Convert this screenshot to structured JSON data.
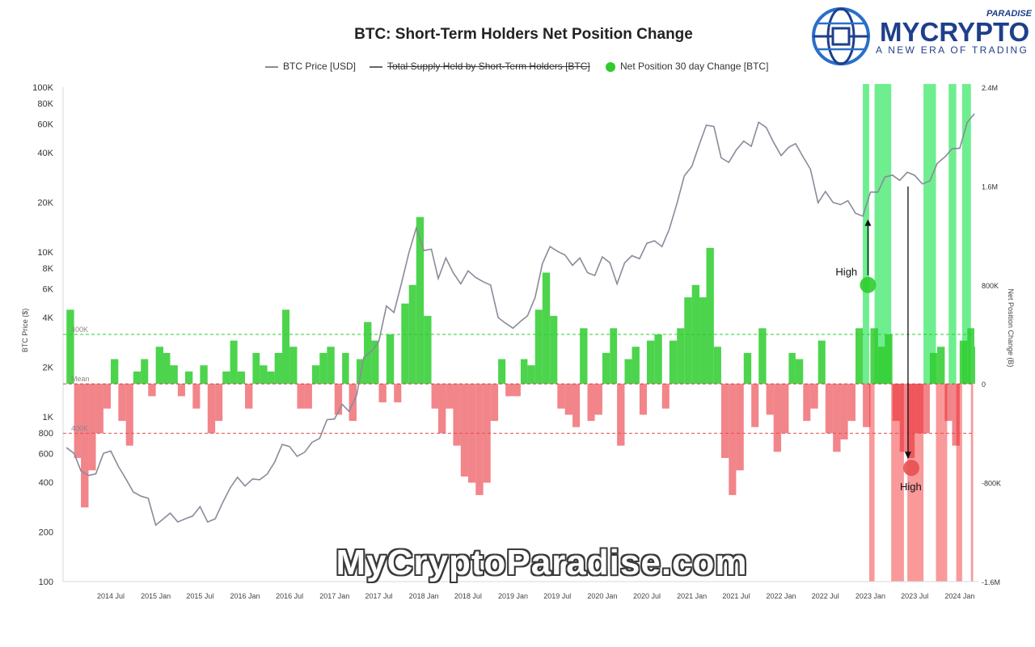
{
  "chart_data": {
    "type": "line",
    "title": "BTC: Short-Term Holders Net Position Change",
    "legend": [
      {
        "label": "BTC Price [USD]",
        "color": "#8a8a9a",
        "shape": "line",
        "struck": false
      },
      {
        "label": "Total Supply Held by Short-Term Holders [BTC]",
        "color": "#666666",
        "shape": "line",
        "struck": true
      },
      {
        "label": "Net Position 30 day Change [BTC]",
        "color": "#2ecc2e",
        "shape": "dot",
        "struck": false
      }
    ],
    "legend_position": "top-center",
    "ylabel_left": "BTC Price ($)",
    "ylabel_right": "Net Position Change (B)",
    "left_scale": "log",
    "left_ylim": [
      100,
      100000
    ],
    "left_ticks": [
      "100K",
      "80K",
      "60K",
      "40K",
      "20K",
      "10K",
      "8K",
      "6K",
      "4K",
      "2K",
      "1K",
      "800",
      "600",
      "400",
      "200",
      "100"
    ],
    "left_tick_values": [
      100000,
      80000,
      60000,
      40000,
      20000,
      10000,
      8000,
      6000,
      4000,
      2000,
      1000,
      800,
      600,
      400,
      200,
      100
    ],
    "right_ylim": [
      -1600000,
      2400000
    ],
    "right_ticks": [
      "2.4M",
      "1.6M",
      "800K",
      "0",
      "-800K",
      "-1.6M"
    ],
    "right_tick_values": [
      2400000,
      1600000,
      800000,
      0,
      -800000,
      -1600000
    ],
    "x_start": "2014-01",
    "x_end": "2024-03",
    "x_ticks": [
      {
        "label": "2014 Jul",
        "date": "2014-07"
      },
      {
        "label": "2015 Jan",
        "date": "2015-01"
      },
      {
        "label": "2015 Jul",
        "date": "2015-07"
      },
      {
        "label": "2016 Jan",
        "date": "2016-01"
      },
      {
        "label": "2016 Jul",
        "date": "2016-07"
      },
      {
        "label": "2017 Jan",
        "date": "2017-01"
      },
      {
        "label": "2017 Jul",
        "date": "2017-07"
      },
      {
        "label": "2018 Jan",
        "date": "2018-01"
      },
      {
        "label": "2018 Jul",
        "date": "2018-07"
      },
      {
        "label": "2019 Jan",
        "date": "2019-01"
      },
      {
        "label": "2019 Jul",
        "date": "2019-07"
      },
      {
        "label": "2020 Jan",
        "date": "2020-01"
      },
      {
        "label": "2020 Jul",
        "date": "2020-07"
      },
      {
        "label": "2021 Jan",
        "date": "2021-01"
      },
      {
        "label": "2021 Jul",
        "date": "2021-07"
      },
      {
        "label": "2022 Jan",
        "date": "2022-01"
      },
      {
        "label": "2022 Jul",
        "date": "2022-07"
      },
      {
        "label": "2023 Jan",
        "date": "2023-01"
      },
      {
        "label": "2023 Jul",
        "date": "2023-07"
      },
      {
        "label": "2024 Jan",
        "date": "2024-01"
      }
    ],
    "reference_lines": [
      {
        "label": "400K",
        "value": 400000,
        "color": "#2ecc2e"
      },
      {
        "label": "Mean",
        "value": 0,
        "color": "#d04040"
      },
      {
        "label": "400K",
        "value": -400000,
        "color": "#e05050"
      }
    ],
    "btc_price": {
      "name": "BTC Price [USD]",
      "color": "#8a8a9a",
      "points": [
        [
          "2014-01",
          650
        ],
        [
          "2014-02",
          600
        ],
        [
          "2014-03",
          470
        ],
        [
          "2014-04",
          440
        ],
        [
          "2014-05",
          450
        ],
        [
          "2014-06",
          600
        ],
        [
          "2014-07",
          620
        ],
        [
          "2014-08",
          500
        ],
        [
          "2014-09",
          420
        ],
        [
          "2014-10",
          350
        ],
        [
          "2014-11",
          330
        ],
        [
          "2014-12",
          320
        ],
        [
          "2015-01",
          220
        ],
        [
          "2015-02",
          240
        ],
        [
          "2015-03",
          260
        ],
        [
          "2015-04",
          230
        ],
        [
          "2015-05",
          240
        ],
        [
          "2015-06",
          250
        ],
        [
          "2015-07",
          285
        ],
        [
          "2015-08",
          230
        ],
        [
          "2015-09",
          240
        ],
        [
          "2015-10",
          300
        ],
        [
          "2015-11",
          370
        ],
        [
          "2015-12",
          430
        ],
        [
          "2016-01",
          380
        ],
        [
          "2016-02",
          420
        ],
        [
          "2016-03",
          415
        ],
        [
          "2016-04",
          450
        ],
        [
          "2016-05",
          530
        ],
        [
          "2016-06",
          680
        ],
        [
          "2016-07",
          660
        ],
        [
          "2016-08",
          575
        ],
        [
          "2016-09",
          610
        ],
        [
          "2016-10",
          700
        ],
        [
          "2016-11",
          740
        ],
        [
          "2016-12",
          960
        ],
        [
          "2017-01",
          970
        ],
        [
          "2017-02",
          1190
        ],
        [
          "2017-03",
          1080
        ],
        [
          "2017-04",
          1350
        ],
        [
          "2017-05",
          2300
        ],
        [
          "2017-06",
          2500
        ],
        [
          "2017-07",
          2870
        ],
        [
          "2017-08",
          4700
        ],
        [
          "2017-09",
          4300
        ],
        [
          "2017-10",
          6400
        ],
        [
          "2017-11",
          9900
        ],
        [
          "2017-12",
          14000
        ],
        [
          "2018-01",
          10200
        ],
        [
          "2018-02",
          10400
        ],
        [
          "2018-03",
          6900
        ],
        [
          "2018-04",
          9200
        ],
        [
          "2018-05",
          7500
        ],
        [
          "2018-06",
          6400
        ],
        [
          "2018-07",
          7700
        ],
        [
          "2018-08",
          7000
        ],
        [
          "2018-09",
          6600
        ],
        [
          "2018-10",
          6300
        ],
        [
          "2018-11",
          4000
        ],
        [
          "2018-12",
          3700
        ],
        [
          "2019-01",
          3450
        ],
        [
          "2019-02",
          3800
        ],
        [
          "2019-03",
          4100
        ],
        [
          "2019-04",
          5300
        ],
        [
          "2019-05",
          8500
        ],
        [
          "2019-06",
          10800
        ],
        [
          "2019-07",
          10100
        ],
        [
          "2019-08",
          9600
        ],
        [
          "2019-09",
          8300
        ],
        [
          "2019-10",
          9200
        ],
        [
          "2019-11",
          7500
        ],
        [
          "2019-12",
          7200
        ],
        [
          "2020-01",
          9350
        ],
        [
          "2020-02",
          8600
        ],
        [
          "2020-03",
          6400
        ],
        [
          "2020-04",
          8600
        ],
        [
          "2020-05",
          9500
        ],
        [
          "2020-06",
          9100
        ],
        [
          "2020-07",
          11300
        ],
        [
          "2020-08",
          11700
        ],
        [
          "2020-09",
          10800
        ],
        [
          "2020-10",
          13800
        ],
        [
          "2020-11",
          19700
        ],
        [
          "2020-12",
          29000
        ],
        [
          "2021-01",
          33100
        ],
        [
          "2021-02",
          45200
        ],
        [
          "2021-03",
          58800
        ],
        [
          "2021-04",
          57800
        ],
        [
          "2021-05",
          37300
        ],
        [
          "2021-06",
          35000
        ],
        [
          "2021-07",
          41500
        ],
        [
          "2021-08",
          47100
        ],
        [
          "2021-09",
          43800
        ],
        [
          "2021-10",
          61300
        ],
        [
          "2021-11",
          57000
        ],
        [
          "2021-12",
          46300
        ],
        [
          "2022-01",
          38500
        ],
        [
          "2022-02",
          43200
        ],
        [
          "2022-03",
          45500
        ],
        [
          "2022-04",
          37700
        ],
        [
          "2022-05",
          31800
        ],
        [
          "2022-06",
          19900
        ],
        [
          "2022-07",
          23300
        ],
        [
          "2022-08",
          20000
        ],
        [
          "2022-09",
          19400
        ],
        [
          "2022-10",
          20500
        ],
        [
          "2022-11",
          17200
        ],
        [
          "2022-12",
          16500
        ],
        [
          "2023-01",
          23100
        ],
        [
          "2023-02",
          23100
        ],
        [
          "2023-03",
          28500
        ],
        [
          "2023-04",
          29300
        ],
        [
          "2023-05",
          27200
        ],
        [
          "2023-06",
          30500
        ],
        [
          "2023-07",
          29200
        ],
        [
          "2023-08",
          25900
        ],
        [
          "2023-09",
          27000
        ],
        [
          "2023-10",
          34500
        ],
        [
          "2023-11",
          37700
        ],
        [
          "2023-12",
          42300
        ],
        [
          "2024-01",
          42600
        ],
        [
          "2024-02",
          61200
        ],
        [
          "2024-03",
          69000
        ]
      ]
    },
    "net_position_change": {
      "name": "Net Position 30 day Change [BTC]",
      "positive_color": "#2ecc2e",
      "negative_color": "#e8202a",
      "points": [
        [
          "2014-01",
          600000
        ],
        [
          "2014-02",
          -600000
        ],
        [
          "2014-03",
          -1000000
        ],
        [
          "2014-04",
          -700000
        ],
        [
          "2014-05",
          -400000
        ],
        [
          "2014-06",
          -200000
        ],
        [
          "2014-07",
          200000
        ],
        [
          "2014-08",
          -300000
        ],
        [
          "2014-09",
          -500000
        ],
        [
          "2014-10",
          100000
        ],
        [
          "2014-11",
          200000
        ],
        [
          "2014-12",
          -100000
        ],
        [
          "2015-01",
          300000
        ],
        [
          "2015-02",
          250000
        ],
        [
          "2015-03",
          150000
        ],
        [
          "2015-04",
          -100000
        ],
        [
          "2015-05",
          100000
        ],
        [
          "2015-06",
          -200000
        ],
        [
          "2015-07",
          150000
        ],
        [
          "2015-08",
          -400000
        ],
        [
          "2015-09",
          -300000
        ],
        [
          "2015-10",
          100000
        ],
        [
          "2015-11",
          350000
        ],
        [
          "2015-12",
          100000
        ],
        [
          "2016-01",
          -200000
        ],
        [
          "2016-02",
          250000
        ],
        [
          "2016-03",
          150000
        ],
        [
          "2016-04",
          100000
        ],
        [
          "2016-05",
          250000
        ],
        [
          "2016-06",
          600000
        ],
        [
          "2016-07",
          300000
        ],
        [
          "2016-08",
          -200000
        ],
        [
          "2016-09",
          -200000
        ],
        [
          "2016-10",
          150000
        ],
        [
          "2016-11",
          250000
        ],
        [
          "2016-12",
          300000
        ],
        [
          "2017-01",
          -250000
        ],
        [
          "2017-02",
          250000
        ],
        [
          "2017-03",
          -300000
        ],
        [
          "2017-04",
          200000
        ],
        [
          "2017-05",
          500000
        ],
        [
          "2017-06",
          350000
        ],
        [
          "2017-07",
          -150000
        ],
        [
          "2017-08",
          400000
        ],
        [
          "2017-09",
          -150000
        ],
        [
          "2017-10",
          650000
        ],
        [
          "2017-11",
          800000
        ],
        [
          "2017-12",
          1350000
        ],
        [
          "2018-01",
          550000
        ],
        [
          "2018-02",
          -200000
        ],
        [
          "2018-03",
          -400000
        ],
        [
          "2018-04",
          -200000
        ],
        [
          "2018-05",
          -500000
        ],
        [
          "2018-06",
          -750000
        ],
        [
          "2018-07",
          -800000
        ],
        [
          "2018-08",
          -900000
        ],
        [
          "2018-09",
          -800000
        ],
        [
          "2018-10",
          -300000
        ],
        [
          "2018-11",
          200000
        ],
        [
          "2018-12",
          -100000
        ],
        [
          "2019-01",
          -100000
        ],
        [
          "2019-02",
          200000
        ],
        [
          "2019-03",
          150000
        ],
        [
          "2019-04",
          600000
        ],
        [
          "2019-05",
          900000
        ],
        [
          "2019-06",
          550000
        ],
        [
          "2019-07",
          -200000
        ],
        [
          "2019-08",
          -250000
        ],
        [
          "2019-09",
          -350000
        ],
        [
          "2019-10",
          450000
        ],
        [
          "2019-11",
          -300000
        ],
        [
          "2019-12",
          -250000
        ],
        [
          "2020-01",
          250000
        ],
        [
          "2020-02",
          450000
        ],
        [
          "2020-03",
          -500000
        ],
        [
          "2020-04",
          200000
        ],
        [
          "2020-05",
          300000
        ],
        [
          "2020-06",
          -250000
        ],
        [
          "2020-07",
          350000
        ],
        [
          "2020-08",
          400000
        ],
        [
          "2020-09",
          -200000
        ],
        [
          "2020-10",
          350000
        ],
        [
          "2020-11",
          450000
        ],
        [
          "2020-12",
          700000
        ],
        [
          "2021-01",
          800000
        ],
        [
          "2021-02",
          700000
        ],
        [
          "2021-03",
          1100000
        ],
        [
          "2021-04",
          300000
        ],
        [
          "2021-05",
          -600000
        ],
        [
          "2021-06",
          -900000
        ],
        [
          "2021-07",
          -700000
        ],
        [
          "2021-08",
          250000
        ],
        [
          "2021-09",
          -350000
        ],
        [
          "2021-10",
          450000
        ],
        [
          "2021-11",
          -250000
        ],
        [
          "2021-12",
          -550000
        ],
        [
          "2022-01",
          -400000
        ],
        [
          "2022-02",
          250000
        ],
        [
          "2022-03",
          200000
        ],
        [
          "2022-04",
          -300000
        ],
        [
          "2022-05",
          -200000
        ],
        [
          "2022-06",
          350000
        ],
        [
          "2022-07",
          -400000
        ],
        [
          "2022-08",
          -550000
        ],
        [
          "2022-09",
          -450000
        ],
        [
          "2022-10",
          -300000
        ],
        [
          "2022-11",
          450000
        ],
        [
          "2022-12",
          -350000
        ],
        [
          "2023-01",
          450000
        ],
        [
          "2023-02",
          300000
        ],
        [
          "2023-03",
          400000
        ],
        [
          "2023-04",
          -300000
        ],
        [
          "2023-05",
          -550000
        ],
        [
          "2023-06",
          -600000
        ],
        [
          "2023-07",
          -400000
        ],
        [
          "2023-08",
          -400000
        ],
        [
          "2023-09",
          250000
        ],
        [
          "2023-10",
          300000
        ],
        [
          "2023-11",
          -300000
        ],
        [
          "2023-12",
          -500000
        ],
        [
          "2024-01",
          350000
        ],
        [
          "2024-02",
          450000
        ],
        [
          "2024-03",
          300000
        ]
      ]
    },
    "highlight_bands": [
      {
        "start": "2022-12-15",
        "end": "2023-01-10",
        "color": "green"
      },
      {
        "start": "2023-02-01",
        "end": "2023-04-10",
        "color": "green"
      },
      {
        "start": "2023-08-20",
        "end": "2023-10-10",
        "color": "green"
      },
      {
        "start": "2023-12-01",
        "end": "2024-01-01",
        "color": "green"
      },
      {
        "start": "2024-01-25",
        "end": "2024-03-01",
        "color": "green"
      },
      {
        "start": "2023-01-10",
        "end": "2023-02-01",
        "color": "red"
      },
      {
        "start": "2023-04-10",
        "end": "2023-06-01",
        "color": "red"
      },
      {
        "start": "2023-06-15",
        "end": "2023-08-20",
        "color": "red"
      },
      {
        "start": "2023-10-10",
        "end": "2023-11-25",
        "color": "red"
      },
      {
        "start": "2024-01-01",
        "end": "2024-01-25",
        "color": "red"
      },
      {
        "start": "2024-03-01",
        "end": "2024-03-10",
        "color": "red"
      }
    ],
    "annotations": [
      {
        "label": "High",
        "date": "2023-01-05",
        "value": 800000,
        "color": "#2ecc2e",
        "arrow_to_price": 16500
      },
      {
        "label": "High",
        "date": "2023-07-01",
        "value": -680000,
        "color": "#e85050",
        "arrow_from_price": 25000
      }
    ]
  },
  "brand": {
    "small": "PARADISE",
    "main": "MYCRYPTO",
    "tagline": "A NEW ERA OF TRADING"
  },
  "watermark": "MyCryptoParadise.com"
}
